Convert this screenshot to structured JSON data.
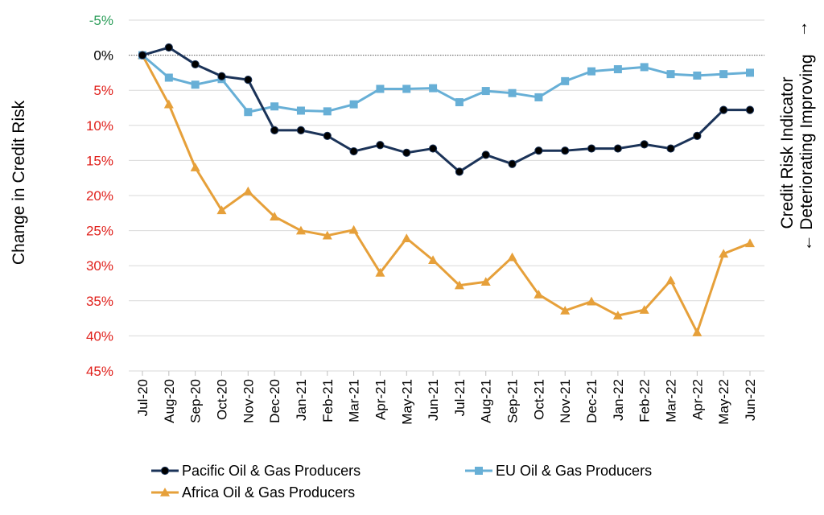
{
  "chart_data": {
    "type": "line",
    "ylabel": "Change in Credit Risk",
    "right_label": {
      "line1": "Credit Risk Indicator",
      "line2": "← Deteriorating Improving",
      "arrow_top": "→"
    },
    "y_ticks": [
      {
        "value": -5,
        "label": "-5%",
        "color": "#2e9e5b"
      },
      {
        "value": 0,
        "label": "0%",
        "color": "#000000"
      },
      {
        "value": 5,
        "label": "5%",
        "color": "#e0201b"
      },
      {
        "value": 10,
        "label": "10%",
        "color": "#e0201b"
      },
      {
        "value": 15,
        "label": "15%",
        "color": "#e0201b"
      },
      {
        "value": 20,
        "label": "20%",
        "color": "#e0201b"
      },
      {
        "value": 25,
        "label": "25%",
        "color": "#e0201b"
      },
      {
        "value": 30,
        "label": "30%",
        "color": "#e0201b"
      },
      {
        "value": 35,
        "label": "35%",
        "color": "#e0201b"
      },
      {
        "value": 40,
        "label": "40%",
        "color": "#e0201b"
      },
      {
        "value": 45,
        "label": "45%",
        "color": "#e0201b"
      }
    ],
    "ylim": [
      -5,
      45
    ],
    "y_inverted": true,
    "grid": true,
    "categories": [
      "Jul-20",
      "Aug-20",
      "Sep-20",
      "Oct-20",
      "Nov-20",
      "Dec-20",
      "Jan-21",
      "Feb-21",
      "Mar-21",
      "Apr-21",
      "May-21",
      "Jun-21",
      "Jul-21",
      "Aug-21",
      "Sep-21",
      "Oct-21",
      "Nov-21",
      "Dec-21",
      "Jan-22",
      "Feb-22",
      "Mar-22",
      "Apr-22",
      "May-22",
      "Jun-22"
    ],
    "series": [
      {
        "name": "Pacific Oil & Gas Producers",
        "color": "#1b3358",
        "marker": "circle",
        "values": [
          0,
          -1.1,
          1.3,
          3.0,
          3.5,
          10.7,
          10.7,
          11.5,
          13.7,
          12.8,
          13.9,
          13.3,
          16.6,
          14.2,
          15.5,
          13.6,
          13.6,
          13.3,
          13.3,
          12.7,
          13.3,
          11.5,
          7.8,
          7.8
        ]
      },
      {
        "name": "EU Oil & Gas Producers",
        "color": "#67afd6",
        "marker": "square",
        "values": [
          0,
          3.2,
          4.2,
          3.4,
          8.1,
          7.3,
          7.9,
          8.0,
          7.0,
          4.8,
          4.8,
          4.7,
          6.7,
          5.1,
          5.4,
          6.0,
          3.7,
          2.3,
          2.0,
          1.7,
          2.7,
          2.9,
          2.7,
          2.5
        ]
      },
      {
        "name": "Africa Oil & Gas Producers",
        "color": "#e6a03a",
        "marker": "triangle",
        "values": [
          0,
          7.0,
          16.0,
          22.1,
          19.4,
          23.0,
          25.0,
          25.7,
          24.9,
          31.0,
          26.1,
          29.2,
          32.8,
          32.3,
          28.8,
          34.1,
          36.4,
          35.1,
          37.1,
          36.3,
          32.1,
          39.5,
          28.3,
          26.8
        ]
      }
    ],
    "legend": "bottom"
  }
}
